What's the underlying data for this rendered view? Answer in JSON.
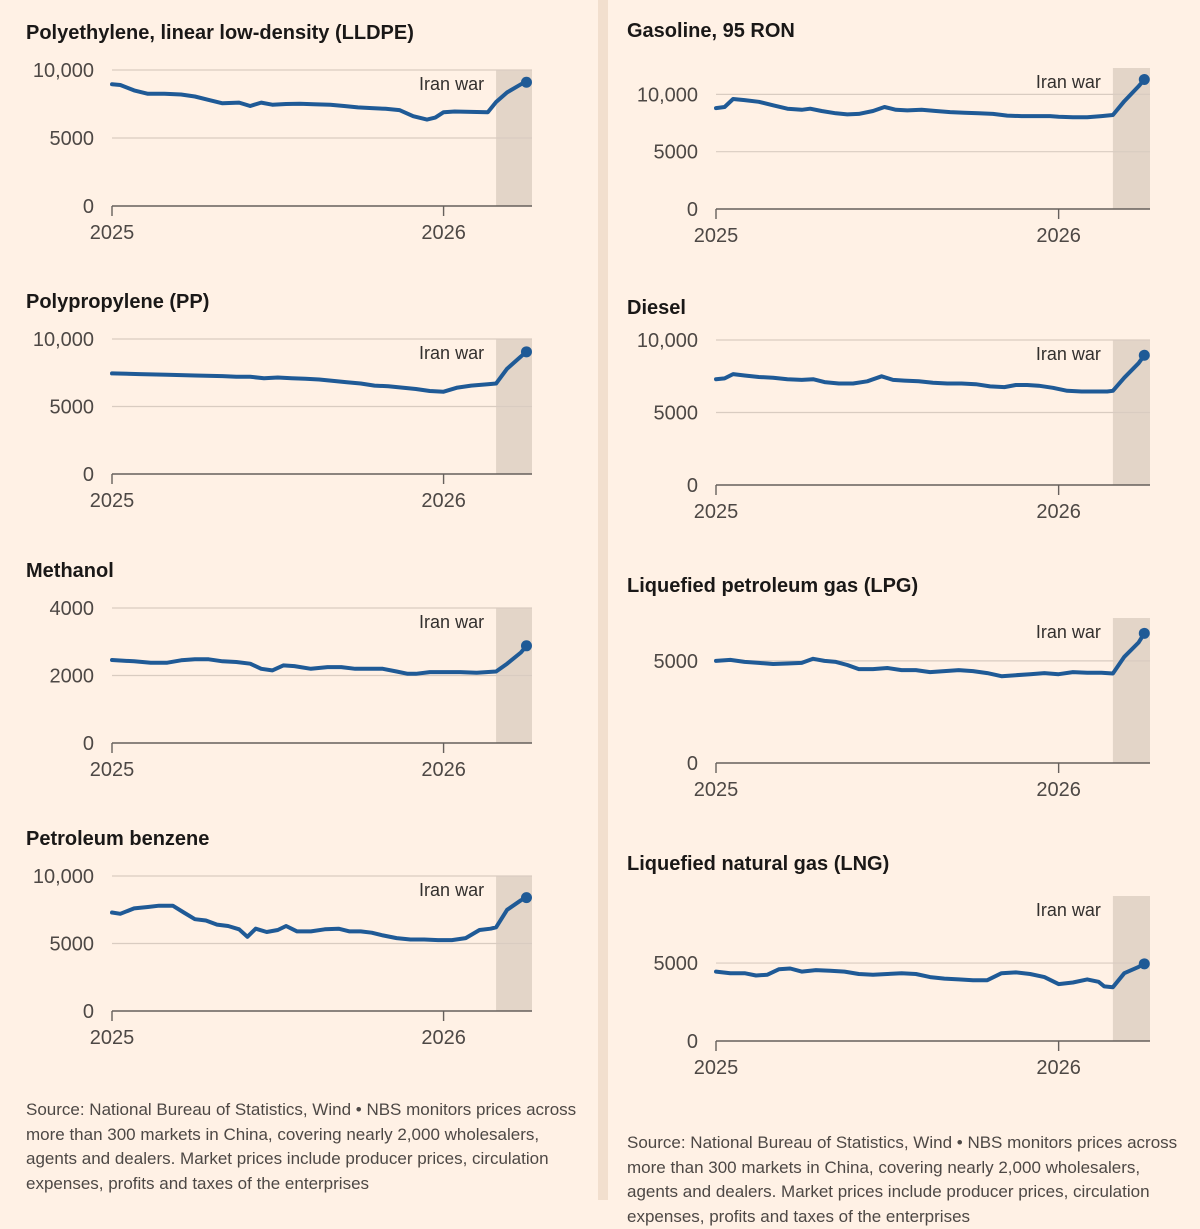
{
  "annotation": "Iran war",
  "source_note": "Source: National Bureau of Statistics, Wind • NBS monitors prices across more than 300 markets in China, covering nearly 2,000 wholesalers, agents and dealers. Market prices include producer prices, circulation expenses, profits and taxes of the enterprises",
  "chart_data": [
    {
      "type": "line",
      "id": "lldpe",
      "title": "Polyethylene, linear low-density (LLDPE)",
      "x_ticks": [
        "2025",
        "2026"
      ],
      "x_tick_values": [
        0,
        12
      ],
      "y_ticks": [
        0,
        5000,
        10000
      ],
      "y_tick_labels": [
        "0",
        "5000",
        "10,000"
      ],
      "ylim": [
        0,
        10000
      ],
      "xlim": [
        0,
        15.2
      ],
      "shade_from": 13.9,
      "annotation": "Iran war",
      "series": [
        {
          "name": "LLDPE",
          "x": [
            0,
            0.3,
            0.8,
            1.3,
            1.9,
            2.5,
            3.0,
            3.5,
            4.0,
            4.6,
            5.0,
            5.4,
            5.8,
            6.3,
            6.8,
            7.3,
            7.9,
            8.4,
            8.9,
            9.4,
            9.9,
            10.4,
            10.9,
            11.4,
            11.7,
            12.0,
            12.4,
            13.0,
            13.6,
            13.9,
            14.3,
            14.8,
            15.0
          ],
          "y": [
            8950,
            8900,
            8500,
            8250,
            8250,
            8200,
            8050,
            7800,
            7550,
            7600,
            7350,
            7600,
            7450,
            7500,
            7520,
            7480,
            7450,
            7350,
            7250,
            7200,
            7150,
            7050,
            6600,
            6350,
            6500,
            6900,
            6950,
            6920,
            6900,
            7650,
            8350,
            8950,
            9100
          ]
        }
      ]
    },
    {
      "type": "line",
      "id": "pp",
      "title": "Polypropylene (PP)",
      "x_ticks": [
        "2025",
        "2026"
      ],
      "x_tick_values": [
        0,
        12
      ],
      "y_ticks": [
        0,
        5000,
        10000
      ],
      "y_tick_labels": [
        "0",
        "5000",
        "10,000"
      ],
      "ylim": [
        0,
        10000
      ],
      "xlim": [
        0,
        15.2
      ],
      "shade_from": 13.9,
      "annotation": "Iran war",
      "series": [
        {
          "name": "PP",
          "x": [
            0,
            1,
            2,
            3,
            4,
            4.5,
            5.0,
            5.5,
            6.0,
            6.5,
            7.0,
            7.5,
            8.0,
            8.5,
            9.0,
            9.5,
            10.0,
            10.5,
            11.0,
            11.5,
            12.0,
            12.5,
            13.0,
            13.6,
            13.9,
            14.3,
            14.8,
            15.0
          ],
          "y": [
            7450,
            7400,
            7350,
            7300,
            7250,
            7200,
            7200,
            7100,
            7150,
            7100,
            7050,
            7000,
            6900,
            6800,
            6700,
            6550,
            6500,
            6400,
            6300,
            6150,
            6100,
            6400,
            6550,
            6650,
            6700,
            7800,
            8700,
            9050
          ]
        }
      ]
    },
    {
      "type": "line",
      "id": "methanol",
      "title": "Methanol",
      "x_ticks": [
        "2025",
        "2026"
      ],
      "x_tick_values": [
        0,
        12
      ],
      "y_ticks": [
        0,
        2000,
        4000
      ],
      "y_tick_labels": [
        "0",
        "2000",
        "4000"
      ],
      "ylim": [
        0,
        4000
      ],
      "xlim": [
        0,
        15.2
      ],
      "shade_from": 13.9,
      "annotation": "Iran war",
      "series": [
        {
          "name": "Methanol",
          "x": [
            0,
            0.8,
            1.4,
            2.0,
            2.5,
            3.0,
            3.5,
            4.0,
            4.5,
            5.0,
            5.4,
            5.8,
            6.2,
            6.6,
            7.2,
            7.8,
            8.3,
            8.8,
            9.3,
            9.8,
            10.3,
            10.7,
            11.0,
            11.5,
            12.0,
            12.6,
            13.2,
            13.9,
            14.3,
            14.8,
            15.0
          ],
          "y": [
            2460,
            2420,
            2380,
            2380,
            2450,
            2480,
            2480,
            2420,
            2400,
            2350,
            2200,
            2150,
            2300,
            2280,
            2200,
            2250,
            2250,
            2200,
            2200,
            2200,
            2120,
            2050,
            2050,
            2100,
            2100,
            2100,
            2080,
            2120,
            2350,
            2680,
            2880
          ]
        }
      ]
    },
    {
      "type": "line",
      "id": "benzene",
      "title": "Petroleum benzene",
      "x_ticks": [
        "2025",
        "2026"
      ],
      "x_tick_values": [
        0,
        12
      ],
      "y_ticks": [
        0,
        5000,
        10000
      ],
      "y_tick_labels": [
        "0",
        "5000",
        "10,000"
      ],
      "ylim": [
        0,
        10000
      ],
      "xlim": [
        0,
        15.2
      ],
      "shade_from": 13.9,
      "annotation": "Iran war",
      "series": [
        {
          "name": "Petroleum benzene",
          "x": [
            0,
            0.3,
            0.8,
            1.3,
            1.7,
            2.2,
            2.6,
            3.0,
            3.4,
            3.8,
            4.2,
            4.6,
            4.9,
            5.2,
            5.6,
            6.0,
            6.3,
            6.7,
            7.2,
            7.7,
            8.2,
            8.6,
            9.0,
            9.4,
            9.8,
            10.3,
            10.8,
            11.3,
            11.8,
            12.3,
            12.8,
            13.3,
            13.7,
            13.9,
            14.3,
            14.8,
            15.0
          ],
          "y": [
            7300,
            7200,
            7600,
            7700,
            7800,
            7800,
            7300,
            6800,
            6700,
            6400,
            6300,
            6050,
            5500,
            6100,
            5850,
            6000,
            6300,
            5900,
            5900,
            6050,
            6100,
            5900,
            5900,
            5800,
            5600,
            5400,
            5300,
            5300,
            5250,
            5250,
            5400,
            6000,
            6100,
            6200,
            7500,
            8200,
            8400
          ]
        }
      ]
    },
    {
      "type": "line",
      "id": "gasoline",
      "title": "Gasoline, 95 RON",
      "x_ticks": [
        "2025",
        "2026"
      ],
      "x_tick_values": [
        0,
        12
      ],
      "y_ticks": [
        0,
        5000,
        10000
      ],
      "y_tick_labels": [
        "0",
        "5000",
        "10,000"
      ],
      "ylim": [
        0,
        12300
      ],
      "xlim": [
        0,
        15.2
      ],
      "shade_from": 13.9,
      "annotation": "Iran war",
      "series": [
        {
          "name": "Gasoline 95 RON",
          "x": [
            0,
            0.3,
            0.6,
            1.0,
            1.5,
            2.0,
            2.5,
            3.0,
            3.3,
            3.7,
            4.2,
            4.6,
            5.0,
            5.5,
            5.9,
            6.3,
            6.7,
            7.2,
            7.7,
            8.2,
            8.7,
            9.2,
            9.7,
            10.2,
            10.7,
            11.2,
            11.7,
            12.0,
            12.5,
            13.0,
            13.5,
            13.9,
            14.3,
            14.8,
            15.0
          ],
          "y": [
            8800,
            8900,
            9600,
            9500,
            9350,
            9050,
            8750,
            8650,
            8750,
            8550,
            8350,
            8250,
            8300,
            8550,
            8900,
            8650,
            8600,
            8650,
            8550,
            8450,
            8400,
            8350,
            8300,
            8150,
            8100,
            8100,
            8100,
            8050,
            8000,
            8000,
            8100,
            8200,
            9400,
            10700,
            11300
          ]
        }
      ]
    },
    {
      "type": "line",
      "id": "diesel",
      "title": "Diesel",
      "x_ticks": [
        "2025",
        "2026"
      ],
      "x_tick_values": [
        0,
        12
      ],
      "y_ticks": [
        0,
        5000,
        10000
      ],
      "y_tick_labels": [
        "0",
        "5000",
        "10,000"
      ],
      "ylim": [
        0,
        10000
      ],
      "xlim": [
        0,
        15.2
      ],
      "shade_from": 13.9,
      "annotation": "Iran war",
      "series": [
        {
          "name": "Diesel",
          "x": [
            0,
            0.3,
            0.6,
            1.0,
            1.5,
            2.0,
            2.5,
            3.0,
            3.4,
            3.8,
            4.3,
            4.8,
            5.3,
            5.8,
            6.2,
            6.6,
            7.1,
            7.6,
            8.1,
            8.6,
            9.1,
            9.6,
            10.1,
            10.5,
            10.9,
            11.3,
            11.8,
            12.3,
            12.8,
            13.3,
            13.7,
            13.9,
            14.3,
            14.8,
            15.0
          ],
          "y": [
            7300,
            7350,
            7650,
            7550,
            7450,
            7400,
            7300,
            7250,
            7300,
            7100,
            7000,
            7000,
            7150,
            7500,
            7250,
            7200,
            7150,
            7050,
            7000,
            7000,
            6950,
            6800,
            6750,
            6900,
            6900,
            6850,
            6700,
            6500,
            6450,
            6450,
            6450,
            6500,
            7400,
            8400,
            8950
          ]
        }
      ]
    },
    {
      "type": "line",
      "id": "lpg",
      "title": "Liquefied petroleum gas (LPG)",
      "x_ticks": [
        "2025",
        "2026"
      ],
      "x_tick_values": [
        0,
        12
      ],
      "y_ticks": [
        0,
        5000
      ],
      "y_tick_labels": [
        "0",
        "5000"
      ],
      "ylim": [
        0,
        7100
      ],
      "xlim": [
        0,
        15.2
      ],
      "shade_from": 13.9,
      "annotation": "Iran war",
      "series": [
        {
          "name": "LPG",
          "x": [
            0,
            0.5,
            1.0,
            1.5,
            2.0,
            2.5,
            3.0,
            3.4,
            3.8,
            4.2,
            4.6,
            5.0,
            5.5,
            6.0,
            6.5,
            7.0,
            7.5,
            8.0,
            8.5,
            9.0,
            9.5,
            10.0,
            10.5,
            11.0,
            11.5,
            12.0,
            12.5,
            13.0,
            13.5,
            13.9,
            14.3,
            14.8,
            15.0
          ],
          "y": [
            5000,
            5050,
            4950,
            4900,
            4850,
            4870,
            4900,
            5100,
            5000,
            4950,
            4800,
            4600,
            4600,
            4650,
            4550,
            4550,
            4450,
            4500,
            4550,
            4500,
            4400,
            4250,
            4300,
            4350,
            4400,
            4350,
            4450,
            4420,
            4420,
            4380,
            5200,
            5900,
            6350
          ]
        }
      ]
    },
    {
      "type": "line",
      "id": "lng",
      "title": "Liquefied natural gas (LNG)",
      "x_ticks": [
        "2025",
        "2026"
      ],
      "x_tick_values": [
        0,
        12
      ],
      "y_ticks": [
        0,
        5000
      ],
      "y_tick_labels": [
        "0",
        "5000"
      ],
      "ylim": [
        0,
        9300
      ],
      "xlim": [
        0,
        15.2
      ],
      "shade_from": 13.9,
      "annotation": "Iran war",
      "series": [
        {
          "name": "LNG",
          "x": [
            0,
            0.5,
            1.0,
            1.4,
            1.8,
            2.2,
            2.6,
            3.0,
            3.5,
            4.0,
            4.5,
            5.0,
            5.5,
            6.0,
            6.5,
            7.0,
            7.5,
            8.0,
            8.5,
            9.0,
            9.5,
            10.0,
            10.5,
            11.0,
            11.5,
            12.0,
            12.5,
            13.0,
            13.4,
            13.6,
            13.9,
            14.3,
            14.8,
            15.0
          ],
          "y": [
            4450,
            4350,
            4350,
            4200,
            4250,
            4600,
            4650,
            4450,
            4550,
            4500,
            4450,
            4300,
            4250,
            4300,
            4350,
            4300,
            4100,
            4000,
            3950,
            3900,
            3900,
            4350,
            4400,
            4300,
            4100,
            3650,
            3750,
            3950,
            3800,
            3500,
            3450,
            4350,
            4750,
            4950
          ]
        }
      ]
    }
  ]
}
